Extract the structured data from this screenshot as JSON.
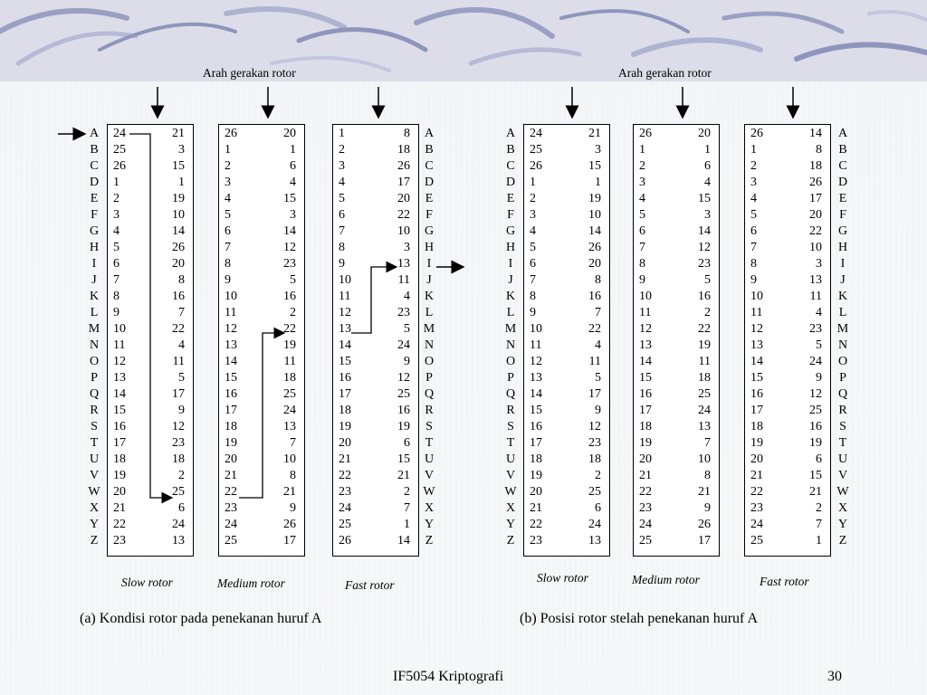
{
  "motion_label": "Arah gerakan rotor",
  "letters": [
    "A",
    "B",
    "C",
    "D",
    "E",
    "F",
    "G",
    "H",
    "I",
    "J",
    "K",
    "L",
    "M",
    "N",
    "O",
    "P",
    "Q",
    "R",
    "S",
    "T",
    "U",
    "V",
    "W",
    "X",
    "Y",
    "Z"
  ],
  "panels": [
    {
      "caption": "(a)  Kondisi rotor pada penekanan huruf A",
      "rotors": [
        {
          "name": "Slow rotor",
          "left": [
            24,
            25,
            26,
            1,
            2,
            3,
            4,
            5,
            6,
            7,
            8,
            9,
            10,
            11,
            12,
            13,
            14,
            15,
            16,
            17,
            18,
            19,
            20,
            21,
            22,
            23
          ],
          "right": [
            21,
            3,
            15,
            1,
            19,
            10,
            14,
            26,
            20,
            8,
            16,
            7,
            22,
            4,
            11,
            5,
            17,
            9,
            12,
            23,
            18,
            2,
            25,
            6,
            24,
            13
          ]
        },
        {
          "name": "Medium rotor",
          "left": [
            26,
            1,
            2,
            3,
            4,
            5,
            6,
            7,
            8,
            9,
            10,
            11,
            12,
            13,
            14,
            15,
            16,
            17,
            18,
            19,
            20,
            21,
            22,
            23,
            24,
            25
          ],
          "right": [
            20,
            1,
            6,
            4,
            15,
            3,
            14,
            12,
            23,
            5,
            16,
            2,
            22,
            19,
            11,
            18,
            25,
            24,
            13,
            7,
            10,
            8,
            21,
            9,
            26,
            17
          ]
        },
        {
          "name": "Fast rotor",
          "left": [
            1,
            2,
            3,
            4,
            5,
            6,
            7,
            8,
            9,
            10,
            11,
            12,
            13,
            14,
            15,
            16,
            17,
            18,
            19,
            20,
            21,
            22,
            23,
            24,
            25,
            26
          ],
          "right": [
            8,
            18,
            26,
            17,
            20,
            22,
            10,
            3,
            13,
            11,
            4,
            23,
            5,
            24,
            9,
            12,
            25,
            16,
            19,
            6,
            15,
            21,
            2,
            7,
            1,
            14
          ]
        }
      ]
    },
    {
      "caption": "(b) Posisi rotor stelah penekanan huruf A",
      "rotors": [
        {
          "name": "Slow rotor",
          "left": [
            24,
            25,
            26,
            1,
            2,
            3,
            4,
            5,
            6,
            7,
            8,
            9,
            10,
            11,
            12,
            13,
            14,
            15,
            16,
            17,
            18,
            19,
            20,
            21,
            22,
            23
          ],
          "right": [
            21,
            3,
            15,
            1,
            19,
            10,
            14,
            26,
            20,
            8,
            16,
            7,
            22,
            4,
            11,
            5,
            17,
            9,
            12,
            23,
            18,
            2,
            25,
            6,
            24,
            13
          ]
        },
        {
          "name": "Medium rotor",
          "left": [
            26,
            1,
            2,
            3,
            4,
            5,
            6,
            7,
            8,
            9,
            10,
            11,
            12,
            13,
            14,
            15,
            16,
            17,
            18,
            19,
            20,
            21,
            22,
            23,
            24,
            25
          ],
          "right": [
            20,
            1,
            6,
            4,
            15,
            3,
            14,
            12,
            23,
            5,
            16,
            2,
            22,
            19,
            11,
            18,
            25,
            24,
            13,
            7,
            10,
            8,
            21,
            9,
            26,
            17
          ]
        },
        {
          "name": "Fast rotor",
          "left": [
            26,
            1,
            2,
            3,
            4,
            5,
            6,
            7,
            8,
            9,
            10,
            11,
            12,
            13,
            14,
            15,
            16,
            17,
            18,
            19,
            20,
            21,
            22,
            23,
            24,
            25
          ],
          "right": [
            14,
            8,
            18,
            26,
            17,
            20,
            22,
            10,
            3,
            13,
            11,
            4,
            23,
            5,
            24,
            9,
            12,
            25,
            16,
            19,
            6,
            15,
            21,
            2,
            7,
            1
          ]
        }
      ]
    }
  ],
  "footer": {
    "course": "IF5054 Kriptografi",
    "page": "30"
  }
}
